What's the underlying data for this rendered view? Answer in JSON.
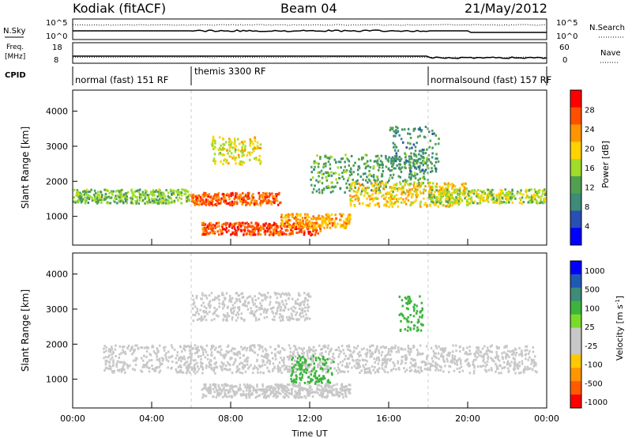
{
  "header": {
    "station": "Kodiak (fitACF)",
    "beam": "Beam 04",
    "date": "21/May/2012"
  },
  "panels": {
    "nsky": {
      "label": "N.Sky",
      "ticks": [
        "10^5",
        "10^0"
      ],
      "right_label": "N.Search",
      "right_ticks": [
        "10^5",
        "10^0"
      ]
    },
    "freq": {
      "label_top": "Freq.",
      "label_unit": "[MHz]",
      "ticks": [
        "18",
        "8"
      ],
      "right_label": "Nave",
      "right_ticks": [
        "60",
        "0"
      ]
    },
    "cpid": {
      "label": "CPID",
      "modes": [
        "normal (fast) 151 RF",
        "themis 3300 RF",
        "normalsound (fast) 157 RF"
      ]
    }
  },
  "colors": {
    "power": [
      "#0000ff",
      "#2850b4",
      "#3c8c78",
      "#50a050",
      "#a0dc28",
      "#ffd200",
      "#ff9600",
      "#ff5000",
      "#ff0000"
    ],
    "velocity": [
      "#ff0000",
      "#ff5a00",
      "#ff9600",
      "#ffc800",
      "#c8c8c8",
      "#c8c8c8",
      "#78dc28",
      "#3cb43c",
      "#3c8c78",
      "#1e5ab4",
      "#0000ff"
    ],
    "ground": "#b4b4b4"
  },
  "chart_data": [
    {
      "type": "heatmap",
      "name": "power",
      "ylabel": "Slant Range [km]",
      "ylim": [
        180,
        4600
      ],
      "yticks": [
        "1000",
        "2000",
        "3000",
        "4000"
      ],
      "xlim": [
        0,
        24
      ],
      "colorbar": {
        "label": "Power [dB]",
        "ticks": [
          "4",
          "8",
          "12",
          "16",
          "20",
          "24",
          "28"
        ],
        "range": [
          0,
          32
        ]
      },
      "features": [
        {
          "t0": 0.0,
          "t1": 5.9,
          "r0": 1400,
          "r1": 1800,
          "value": 14
        },
        {
          "t0": 5.9,
          "t1": 10.5,
          "r0": 1350,
          "r1": 1700,
          "value": 26
        },
        {
          "t0": 6.5,
          "t1": 12.5,
          "r0": 500,
          "r1": 850,
          "value": 27
        },
        {
          "t0": 10.5,
          "t1": 14.0,
          "r0": 700,
          "r1": 1100,
          "value": 22
        },
        {
          "t0": 7.0,
          "t1": 9.5,
          "r0": 2500,
          "r1": 3300,
          "value": 18
        },
        {
          "t0": 12.0,
          "t1": 18.0,
          "r0": 1700,
          "r1": 2800,
          "value": 12
        },
        {
          "t0": 14.0,
          "t1": 20.0,
          "r0": 1300,
          "r1": 2000,
          "value": 20
        },
        {
          "t0": 18.0,
          "t1": 23.9,
          "r0": 1400,
          "r1": 1800,
          "value": 16
        },
        {
          "t0": 16.0,
          "t1": 18.5,
          "r0": 2300,
          "r1": 3600,
          "value": 10
        }
      ]
    },
    {
      "type": "heatmap",
      "name": "velocity",
      "ylabel": "Slant Range [km]",
      "ylim": [
        180,
        4600
      ],
      "yticks": [
        "1000",
        "2000",
        "3000",
        "4000"
      ],
      "xlim": [
        0,
        24
      ],
      "xlabel": "Time UT",
      "xticks": [
        "00:00",
        "04:00",
        "08:00",
        "12:00",
        "16:00",
        "20:00",
        "00:00"
      ],
      "colorbar": {
        "label": "Velocity [m s^-1]",
        "ticks": [
          "1000",
          "500",
          "100",
          "25",
          "-25",
          "-100",
          "-500",
          "-1000"
        ]
      },
      "features": [
        {
          "t0": 1.5,
          "t1": 23.5,
          "r0": 1200,
          "r1": 2000,
          "value": 0
        },
        {
          "t0": 11.0,
          "t1": 13.2,
          "r0": 900,
          "r1": 1700,
          "value": 150
        },
        {
          "t0": 16.5,
          "t1": 17.7,
          "r0": 2400,
          "r1": 3400,
          "value": 200
        },
        {
          "t0": 6.0,
          "t1": 12.0,
          "r0": 2700,
          "r1": 3500,
          "value": 0
        },
        {
          "t0": 6.5,
          "t1": 14.0,
          "r0": 500,
          "r1": 900,
          "value": 0
        }
      ]
    }
  ]
}
